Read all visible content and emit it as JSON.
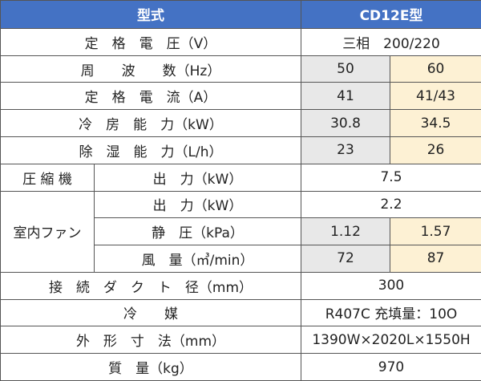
{
  "header": {
    "left": "型式",
    "right": "CD12E型"
  },
  "rows": {
    "voltage": {
      "label": "定　格　電　圧（V）",
      "value": "三相　200/220"
    },
    "freq": {
      "label": "周　　波　　数（Hz）",
      "v50": "50",
      "v60": "60"
    },
    "current": {
      "label": "定　格　電　流（A）",
      "v50": "41",
      "v60": "41/43"
    },
    "cooling": {
      "label": "冷　房　能　力（kW）",
      "v50": "30.8",
      "v60": "34.5"
    },
    "dehumid": {
      "label": "除　湿　能　力（L/h）",
      "v50": "23",
      "v60": "26"
    },
    "compressor": {
      "group": "圧 縮 機",
      "label": "出　力（kW）",
      "value": "7.5"
    },
    "fan_output": {
      "group": "室内ファン",
      "label": "出　力（kW）",
      "value": "2.2"
    },
    "fan_static": {
      "label": "静　圧（kPa）",
      "v50": "1.12",
      "v60": "1.57"
    },
    "fan_air": {
      "label": "風　量（㎥/min）",
      "v50": "72",
      "v60": "87"
    },
    "duct": {
      "label": "接　続　ダ　ク　ト　径（mm）",
      "value": "300"
    },
    "refrigerant": {
      "label": "冷　　媒",
      "value": "R407C 充填量：10O"
    },
    "dimensions": {
      "label": "外　形　寸　法（mm）",
      "value": "1390W×2020L×1550H"
    },
    "mass": {
      "label": "質　量（kg）",
      "value": "970"
    }
  }
}
